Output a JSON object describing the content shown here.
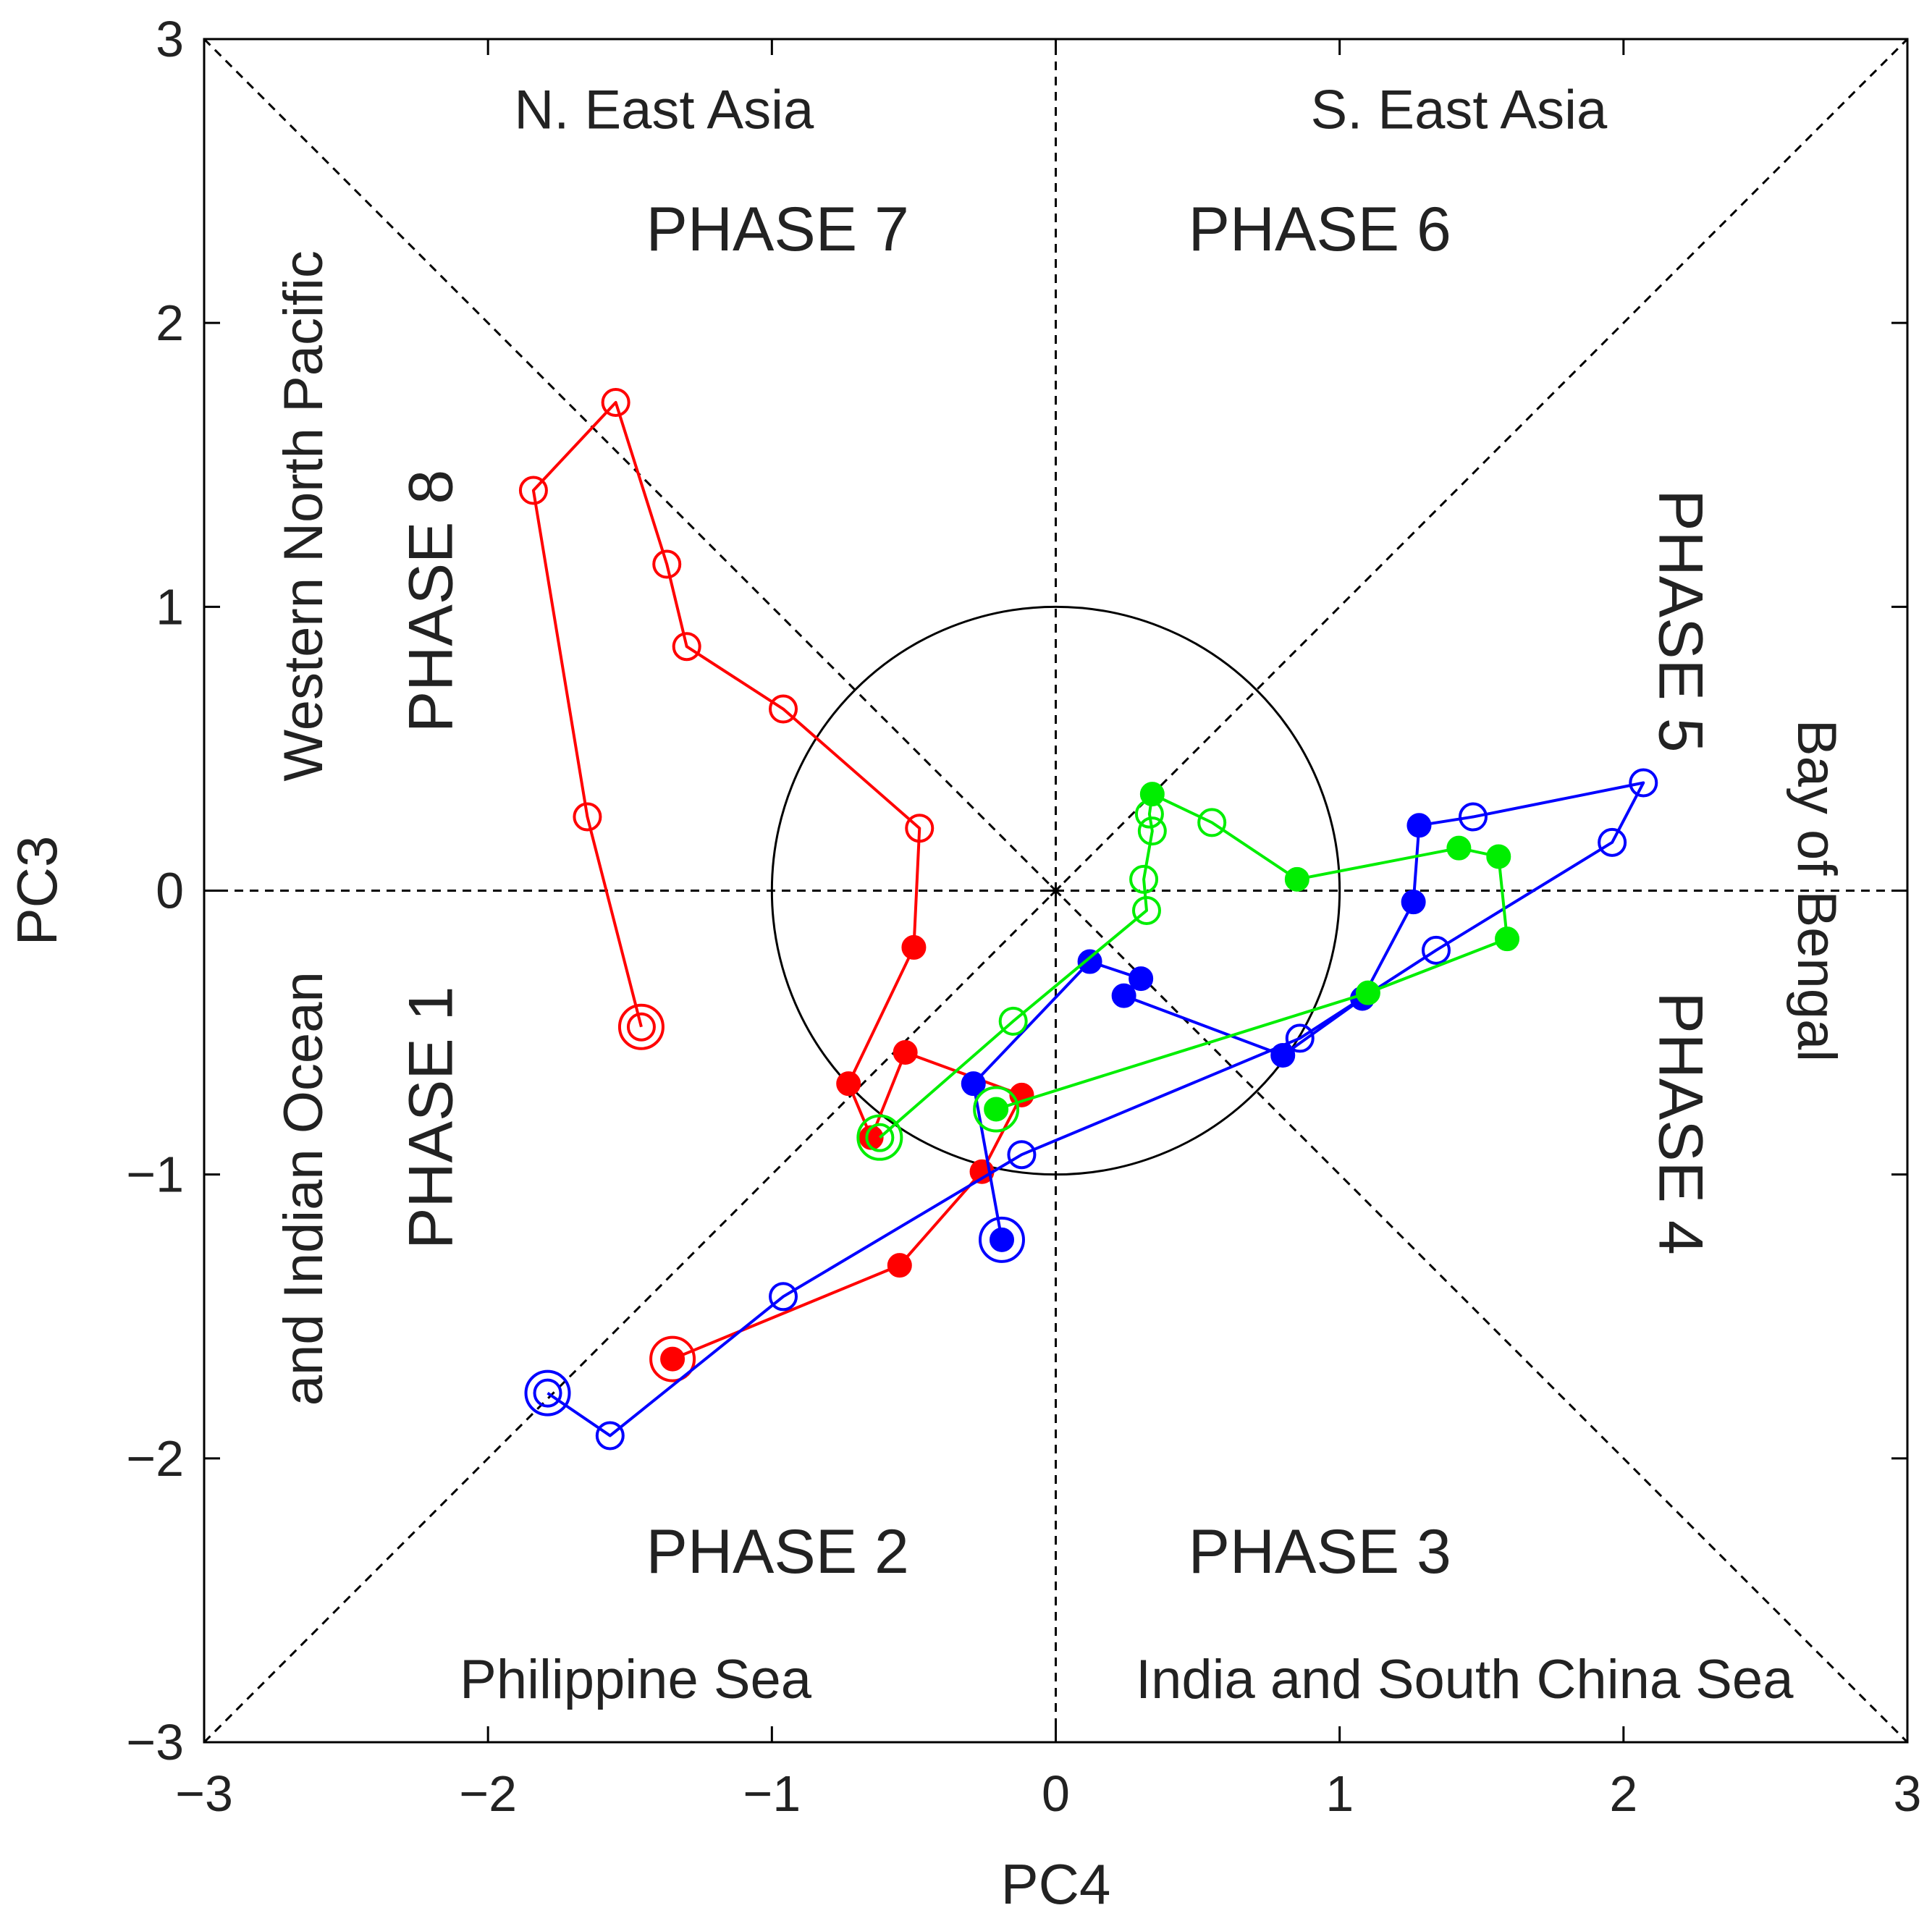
{
  "chart_data": {
    "type": "line",
    "xlabel": "PC4",
    "ylabel": "PC3",
    "xlim": [
      -3,
      3
    ],
    "ylim": [
      -3,
      3
    ],
    "xticks": [
      -3,
      -2,
      -1,
      0,
      1,
      2,
      3
    ],
    "yticks": [
      -3,
      -2,
      -1,
      0,
      1,
      2,
      3
    ],
    "x_tick_labels": [
      "−3",
      "−2",
      "−1",
      "0",
      "1",
      "2",
      "3"
    ],
    "y_tick_labels": [
      "−3",
      "−2",
      "−1",
      "0",
      "1",
      "2",
      "3"
    ],
    "grid": false,
    "reference_circle_radius": 1,
    "phase_labels": [
      {
        "phase": 1,
        "text": "PHASE 1",
        "x": -2.2,
        "y": -0.8,
        "rotation": -90
      },
      {
        "phase": 2,
        "text": "PHASE 2",
        "x": -0.98,
        "y": -2.33,
        "rotation": 0
      },
      {
        "phase": 3,
        "text": "PHASE 3",
        "x": 0.93,
        "y": -2.33,
        "rotation": 0
      },
      {
        "phase": 4,
        "text": "PHASE 4",
        "x": 2.2,
        "y": -0.82,
        "rotation": 90
      },
      {
        "phase": 5,
        "text": "PHASE 5",
        "x": 2.2,
        "y": 0.95,
        "rotation": 90
      },
      {
        "phase": 6,
        "text": "PHASE 6",
        "x": 0.93,
        "y": 2.33,
        "rotation": 0
      },
      {
        "phase": 7,
        "text": "PHASE 7",
        "x": -0.98,
        "y": 2.33,
        "rotation": 0
      },
      {
        "phase": 8,
        "text": "PHASE 8",
        "x": -2.2,
        "y": 1.02,
        "rotation": -90
      }
    ],
    "region_labels": [
      {
        "text": "N. East Asia",
        "x": -1.38,
        "y": 2.75,
        "rotation": 0
      },
      {
        "text": "S. East Asia",
        "x": 1.42,
        "y": 2.75,
        "rotation": 0
      },
      {
        "text": "Philippine Sea",
        "x": -1.48,
        "y": -2.78,
        "rotation": 0
      },
      {
        "text": "India and South China Sea",
        "x": 1.44,
        "y": -2.78,
        "rotation": 0
      },
      {
        "text": "Western North Pacific",
        "x": -2.65,
        "y": 1.32,
        "rotation": -90
      },
      {
        "text": "and Indian Ocean",
        "x": -2.65,
        "y": -1.05,
        "rotation": -90
      },
      {
        "text": "Bay of Bengal",
        "x": 2.68,
        "y": 0.0,
        "rotation": 90
      }
    ],
    "series": [
      {
        "name": "red",
        "color": "#ff0000",
        "points": [
          {
            "x": -1.35,
            "y": -1.65,
            "marker": "filled",
            "start": true
          },
          {
            "x": -0.55,
            "y": -1.32,
            "marker": "filled"
          },
          {
            "x": -0.26,
            "y": -0.99,
            "marker": "filled"
          },
          {
            "x": -0.12,
            "y": -0.72,
            "marker": "filled"
          },
          {
            "x": -0.53,
            "y": -0.57,
            "marker": "filled"
          },
          {
            "x": -0.65,
            "y": -0.87,
            "marker": "filled"
          },
          {
            "x": -0.73,
            "y": -0.68,
            "marker": "filled"
          },
          {
            "x": -0.5,
            "y": -0.2,
            "marker": "filled"
          },
          {
            "x": -0.48,
            "y": 0.22,
            "marker": "open"
          },
          {
            "x": -0.96,
            "y": 0.64,
            "marker": "open"
          },
          {
            "x": -1.3,
            "y": 0.86,
            "marker": "open"
          },
          {
            "x": -1.37,
            "y": 1.15,
            "marker": "open"
          },
          {
            "x": -1.55,
            "y": 1.72,
            "marker": "open"
          },
          {
            "x": -1.84,
            "y": 1.41,
            "marker": "open"
          },
          {
            "x": -1.65,
            "y": 0.26,
            "marker": "open"
          },
          {
            "x": -1.46,
            "y": -0.48,
            "marker": "open",
            "end": true
          }
        ]
      },
      {
        "name": "blue",
        "color": "#0000ff",
        "points": [
          {
            "x": -0.19,
            "y": -1.23,
            "marker": "filled",
            "start": true
          },
          {
            "x": -0.29,
            "y": -0.68,
            "marker": "filled"
          },
          {
            "x": 0.12,
            "y": -0.25,
            "marker": "filled"
          },
          {
            "x": 0.3,
            "y": -0.31,
            "marker": "filled"
          },
          {
            "x": 0.24,
            "y": -0.37,
            "marker": "filled"
          },
          {
            "x": 0.8,
            "y": -0.58,
            "marker": "filled"
          },
          {
            "x": 1.08,
            "y": -0.38,
            "marker": "filled"
          },
          {
            "x": 1.26,
            "y": -0.04,
            "marker": "filled"
          },
          {
            "x": 1.28,
            "y": 0.23,
            "marker": "filled"
          },
          {
            "x": 1.47,
            "y": 0.26,
            "marker": "open"
          },
          {
            "x": 2.07,
            "y": 0.38,
            "marker": "open"
          },
          {
            "x": 1.96,
            "y": 0.17,
            "marker": "open"
          },
          {
            "x": 1.34,
            "y": -0.21,
            "marker": "open"
          },
          {
            "x": 0.86,
            "y": -0.52,
            "marker": "open"
          },
          {
            "x": -0.12,
            "y": -0.93,
            "marker": "open"
          },
          {
            "x": -0.96,
            "y": -1.43,
            "marker": "open"
          },
          {
            "x": -1.57,
            "y": -1.92,
            "marker": "open"
          },
          {
            "x": -1.79,
            "y": -1.77,
            "marker": "open",
            "end": true
          }
        ]
      },
      {
        "name": "green",
        "color": "#00ee00",
        "points": [
          {
            "x": -0.21,
            "y": -0.77,
            "marker": "filled",
            "start": true
          },
          {
            "x": 1.1,
            "y": -0.36,
            "marker": "filled"
          },
          {
            "x": 1.59,
            "y": -0.17,
            "marker": "filled"
          },
          {
            "x": 1.56,
            "y": 0.12,
            "marker": "filled"
          },
          {
            "x": 1.42,
            "y": 0.15,
            "marker": "filled"
          },
          {
            "x": 0.85,
            "y": 0.04,
            "marker": "filled"
          },
          {
            "x": 0.55,
            "y": 0.24,
            "marker": "open"
          },
          {
            "x": 0.34,
            "y": 0.34,
            "marker": "filled"
          },
          {
            "x": 0.33,
            "y": 0.27,
            "marker": "open"
          },
          {
            "x": 0.34,
            "y": 0.21,
            "marker": "open"
          },
          {
            "x": 0.31,
            "y": 0.04,
            "marker": "open"
          },
          {
            "x": 0.32,
            "y": -0.07,
            "marker": "open"
          },
          {
            "x": -0.15,
            "y": -0.46,
            "marker": "open"
          },
          {
            "x": -0.62,
            "y": -0.87,
            "marker": "open",
            "end": true
          }
        ]
      }
    ]
  }
}
